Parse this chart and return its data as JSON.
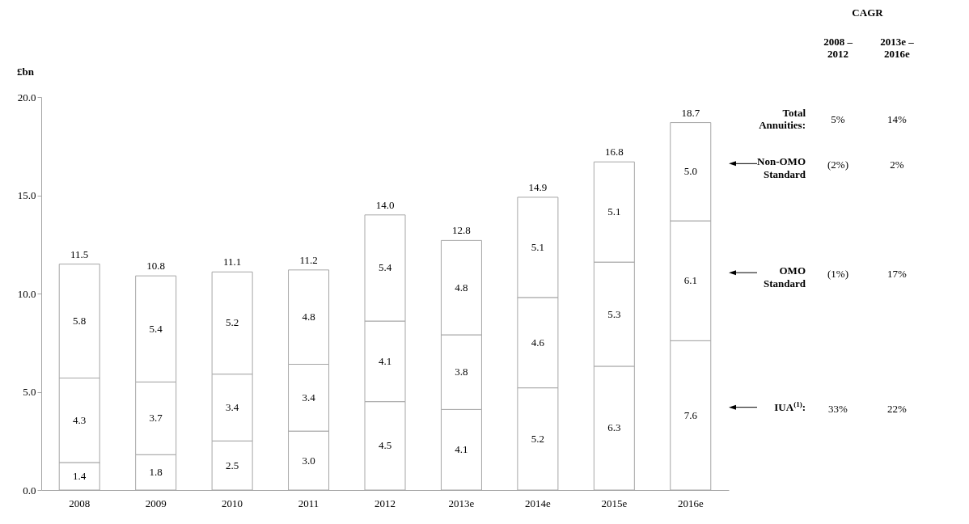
{
  "chart_data": {
    "type": "bar",
    "stacked": true,
    "ylabel": "£bn",
    "categories": [
      "2008",
      "2009",
      "2010",
      "2011",
      "2012",
      "2013e",
      "2014e",
      "2015e",
      "2016e"
    ],
    "series": [
      {
        "name": "IUA$^{(1)}$:",
        "color": "#ffffff",
        "values": [
          1.4,
          1.8,
          2.5,
          3.0,
          4.5,
          4.1,
          5.2,
          6.3,
          7.6
        ],
        "value_labels": [
          "1.4",
          "1.8",
          "2.5",
          "3.0",
          "4.5",
          "4.1",
          "5.2",
          "6.3",
          "7.6"
        ]
      },
      {
        "name": "OMO\nStandard",
        "color": "#ffffff",
        "values": [
          4.3,
          3.7,
          3.4,
          3.4,
          4.1,
          3.8,
          4.6,
          5.3,
          6.1
        ],
        "value_labels": [
          "4.3",
          "3.7",
          "3.4",
          "3.4",
          "4.1",
          "3.8",
          "4.6",
          "5.3",
          "6.1"
        ]
      },
      {
        "name": "Non-OMO\nStandard",
        "color": "#ffffff",
        "values": [
          5.8,
          5.4,
          5.2,
          4.8,
          5.4,
          4.8,
          5.1,
          5.1,
          5.0
        ],
        "value_labels": [
          "5.8",
          "5.4",
          "5.2",
          "4.8",
          "5.4",
          "4.8",
          "5.1",
          "5.1",
          "5.0"
        ]
      }
    ],
    "totals": [
      "11.5",
      "10.8",
      "11.1",
      "11.2",
      "14.0",
      "12.8",
      "14.9",
      "16.8",
      "18.7"
    ],
    "ylim": [
      0,
      20
    ],
    "yticks": [
      {
        "value": 0,
        "label": "0.0"
      },
      {
        "value": 5,
        "label": "5.0"
      },
      {
        "value": 10,
        "label": "10.0"
      },
      {
        "value": 15,
        "label": "15.0"
      },
      {
        "value": 20,
        "label": "20.0"
      }
    ],
    "grid": false,
    "annotations": [
      "CAGR",
      "2008 –\n2012",
      "2013e –\n2016e",
      "Total\nAnnuities:",
      "5%",
      "14%",
      "33%",
      "22%",
      "(1%)",
      "17%",
      "(2%)",
      "2%"
    ]
  }
}
